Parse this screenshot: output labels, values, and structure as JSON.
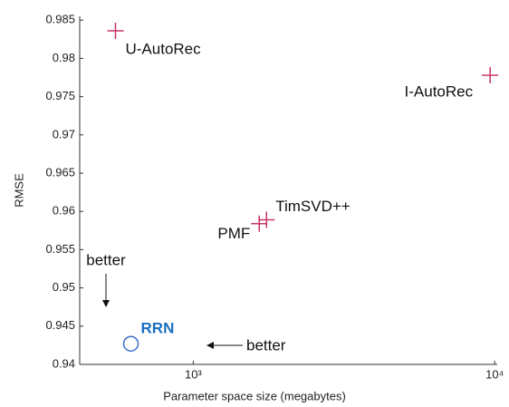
{
  "chart_data": {
    "type": "scatter",
    "xlabel": "Parameter space size (megabytes)",
    "ylabel": "RMSE",
    "xscale": "log",
    "xlim": [
      420,
      10200
    ],
    "ylim": [
      0.94,
      0.9855
    ],
    "xticks": [
      {
        "value": 1000,
        "label": "10³"
      },
      {
        "value": 10000,
        "label": "10⁴"
      }
    ],
    "yticks": [
      0.94,
      0.945,
      0.95,
      0.955,
      0.96,
      0.965,
      0.97,
      0.975,
      0.98,
      0.985
    ],
    "points": [
      {
        "label": "U-AutoRec",
        "x": 552,
        "y": 0.9836,
        "marker": "plus",
        "color": "#c8336a",
        "label_color": "#111"
      },
      {
        "label": "I-AutoRec",
        "x": 9660,
        "y": 0.9778,
        "marker": "plus",
        "color": "#c8336a",
        "label_color": "#111"
      },
      {
        "label": "TimSVD++",
        "x": 1750,
        "y": 0.9589,
        "marker": "plus",
        "color": "#c8336a",
        "label_color": "#111"
      },
      {
        "label": "PMF",
        "x": 1656,
        "y": 0.9584,
        "marker": "plus",
        "color": "#c8336a",
        "label_color": "#111"
      },
      {
        "label": "RRN",
        "x": 621,
        "y": 0.9427,
        "marker": "circle",
        "color": "#3a6fd0",
        "label_color": "#1a6fc0"
      }
    ],
    "annotations": [
      "better",
      "better"
    ]
  }
}
